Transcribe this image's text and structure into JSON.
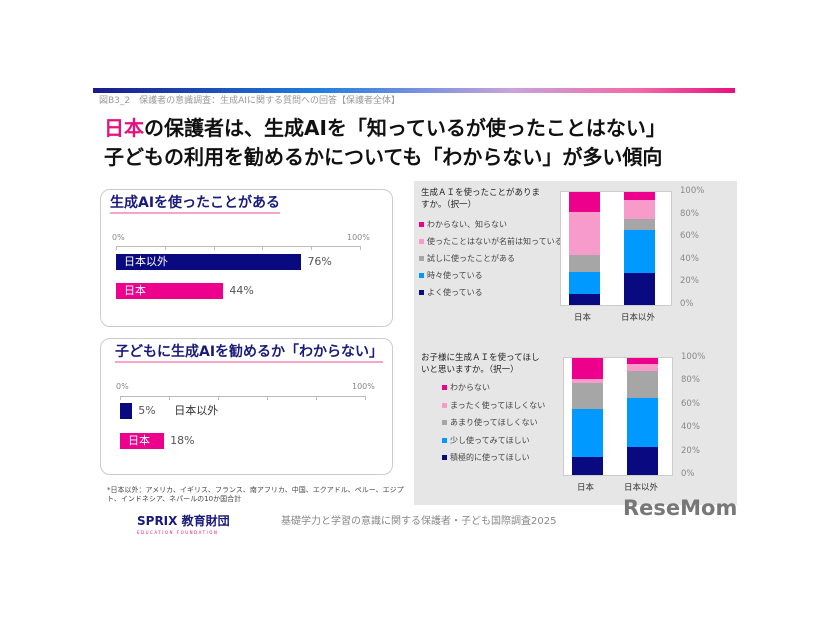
{
  "caption": "図B3_2　保護者の意識調査：生成AIに関する質問への回答【保護者全体】",
  "headline": {
    "line1_highlight": "日本",
    "line1_rest": "の保護者は、生成AIを「知っているが使ったことはない」",
    "line2": "子どもの利用を勧めるかについても「わからない」が多い傾向"
  },
  "colors": {
    "navy": "#0a0a80",
    "pink": "#ec008c",
    "light_pink": "#f79bcb",
    "gray": "#a6a6a6",
    "blue": "#0099ff"
  },
  "chart_data": [
    {
      "type": "bar",
      "orientation": "horizontal",
      "title": "生成AIを使ったことがある",
      "categories": [
        "日本以外",
        "日本"
      ],
      "values": [
        76,
        44
      ],
      "value_labels": [
        "76%",
        "44%"
      ],
      "xlim": [
        0,
        100
      ],
      "tick_labels": [
        "0%",
        "100%"
      ]
    },
    {
      "type": "bar",
      "orientation": "horizontal",
      "title": "子どもに生成AIを勧めるか「わからない」",
      "categories": [
        "日本以外",
        "日本"
      ],
      "values": [
        5,
        18
      ],
      "value_labels": [
        "5%",
        "18%"
      ],
      "xlim": [
        0,
        100
      ],
      "tick_labels": [
        "0%",
        "100%"
      ]
    },
    {
      "type": "bar",
      "stacked": true,
      "title": "生成ＡＩを使ったことがありますか。（択一）",
      "categories": [
        "日本",
        "日本以外"
      ],
      "ylim": [
        0,
        100
      ],
      "y_tick_labels": [
        "100%",
        "80%",
        "60%",
        "40%",
        "20%",
        "0%"
      ],
      "legend_placement": "left",
      "series": [
        {
          "name": "よく使っている",
          "color": "#0a0a80",
          "values": [
            10,
            28
          ]
        },
        {
          "name": "時々使っている",
          "color": "#0099ff",
          "values": [
            19,
            38
          ]
        },
        {
          "name": "試しに使ったことがある",
          "color": "#a6a6a6",
          "values": [
            15,
            10
          ]
        },
        {
          "name": "使ったことはないが名前は知っている",
          "color": "#f79bcb",
          "values": [
            38,
            17
          ]
        },
        {
          "name": "わからない、知らない",
          "color": "#ec008c",
          "values": [
            18,
            7
          ]
        }
      ]
    },
    {
      "type": "bar",
      "stacked": true,
      "title": "お子様に生成ＡＩを使ってほしいと思いますか。（択一）",
      "categories": [
        "日本",
        "日本以外"
      ],
      "ylim": [
        0,
        100
      ],
      "y_tick_labels": [
        "100%",
        "80%",
        "60%",
        "40%",
        "20%",
        "0%"
      ],
      "legend_placement": "left",
      "series": [
        {
          "name": "積極的に使ってほしい",
          "color": "#0a0a80",
          "values": [
            15,
            24
          ]
        },
        {
          "name": "少し使ってみてほしい",
          "color": "#0099ff",
          "values": [
            41,
            42
          ]
        },
        {
          "name": "あまり使ってほしくない",
          "color": "#a6a6a6",
          "values": [
            23,
            23
          ]
        },
        {
          "name": "まったく使ってほしくない",
          "color": "#f79bcb",
          "values": [
            3,
            6
          ]
        },
        {
          "name": "わからない",
          "color": "#ec008c",
          "values": [
            18,
            5
          ]
        }
      ]
    }
  ],
  "footnote": "*日本以外：アメリカ、イギリス、フランス、南アフリカ、中国、エクアドル、ペルー、エジプト、インドネシア、ネパールの10か国合計",
  "logo": {
    "name": "SPRIX 教育財団",
    "sub": "EDUCATION FOUNDATION"
  },
  "survey_name": "基礎学力と学習の意識に関する保護者・子ども国際調査2025",
  "watermark": "ReseMom"
}
